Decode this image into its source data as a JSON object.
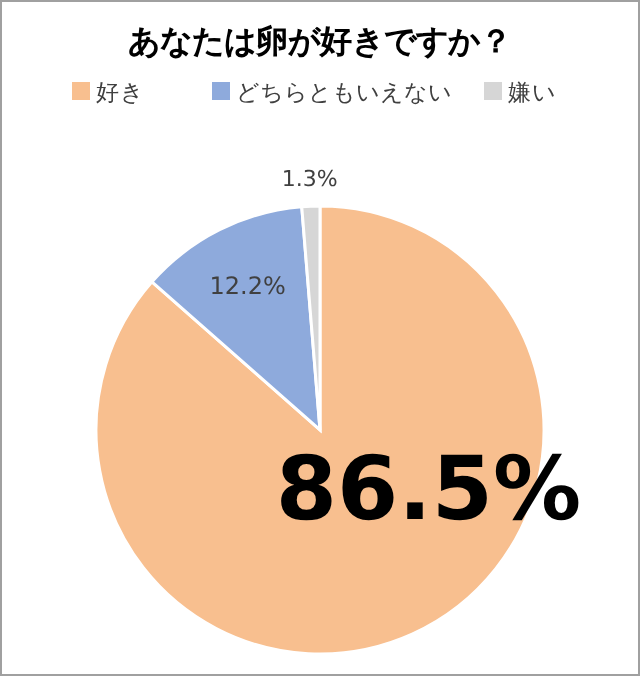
{
  "chart_data": {
    "type": "pie",
    "title": "あなたは卵が好きですか？",
    "categories": [
      "好き",
      "どちらともいえない",
      "嫌い"
    ],
    "values": [
      86.5,
      12.2,
      1.3
    ],
    "colors": [
      "#f8bf8f",
      "#8eaadc",
      "#d6d6d6"
    ],
    "value_labels": [
      "86.5%",
      "12.2%",
      "1.3%"
    ],
    "legend": "top"
  }
}
